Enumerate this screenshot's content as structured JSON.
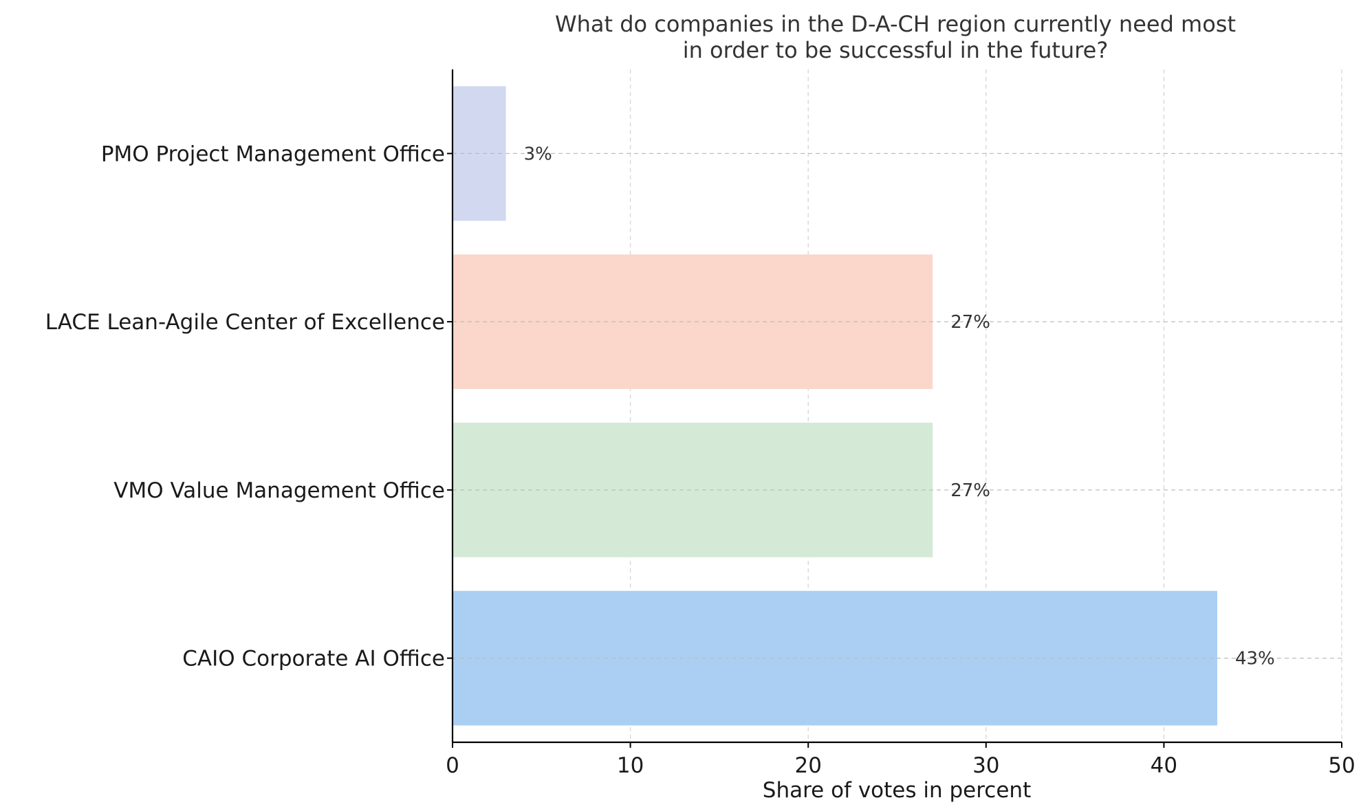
{
  "chart_data": {
    "type": "bar",
    "orientation": "horizontal",
    "title": [
      "What do companies in the D-A-CH region currently need most",
      "in order to be successful in the future?"
    ],
    "xlabel": "Share of votes in percent",
    "ylabel": "",
    "xlim": [
      0,
      50
    ],
    "xticks": [
      "0",
      "10",
      "20",
      "30",
      "40",
      "50"
    ],
    "grid": true,
    "categories": [
      "PMO Project Management Office",
      "LACE Lean-Agile Center of Excellence",
      "VMO Value Management Office",
      "CAIO Corporate AI Office"
    ],
    "values": [
      3,
      27,
      27,
      43
    ],
    "value_labels": [
      "3%",
      "27%",
      "27%",
      "43%"
    ],
    "colors": [
      "#d1d8f0",
      "#fad7ca",
      "#d4ead6",
      "#aacff3"
    ]
  }
}
